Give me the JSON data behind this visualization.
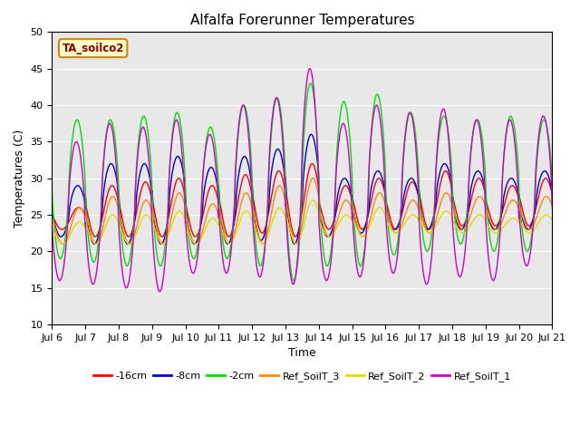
{
  "title": "Alfalfa Forerunner Temperatures",
  "xlabel": "Time",
  "ylabel": "Temperatures (C)",
  "ylim": [
    10,
    50
  ],
  "xlim_days": [
    6,
    21
  ],
  "annotation": "TA_soilco2",
  "legend_entries": [
    "-16cm",
    "-8cm",
    "-2cm",
    "Ref_SoilT_3",
    "Ref_SoilT_2",
    "Ref_SoilT_1"
  ],
  "line_colors": [
    "#ff0000",
    "#0000cc",
    "#00dd00",
    "#ff8800",
    "#dddd00",
    "#cc00cc"
  ],
  "background_color": "#e8e8e8",
  "title_fontsize": 11,
  "axis_label_fontsize": 9,
  "tick_fontsize": 8,
  "figsize": [
    6.4,
    4.8
  ],
  "dpi": 100
}
